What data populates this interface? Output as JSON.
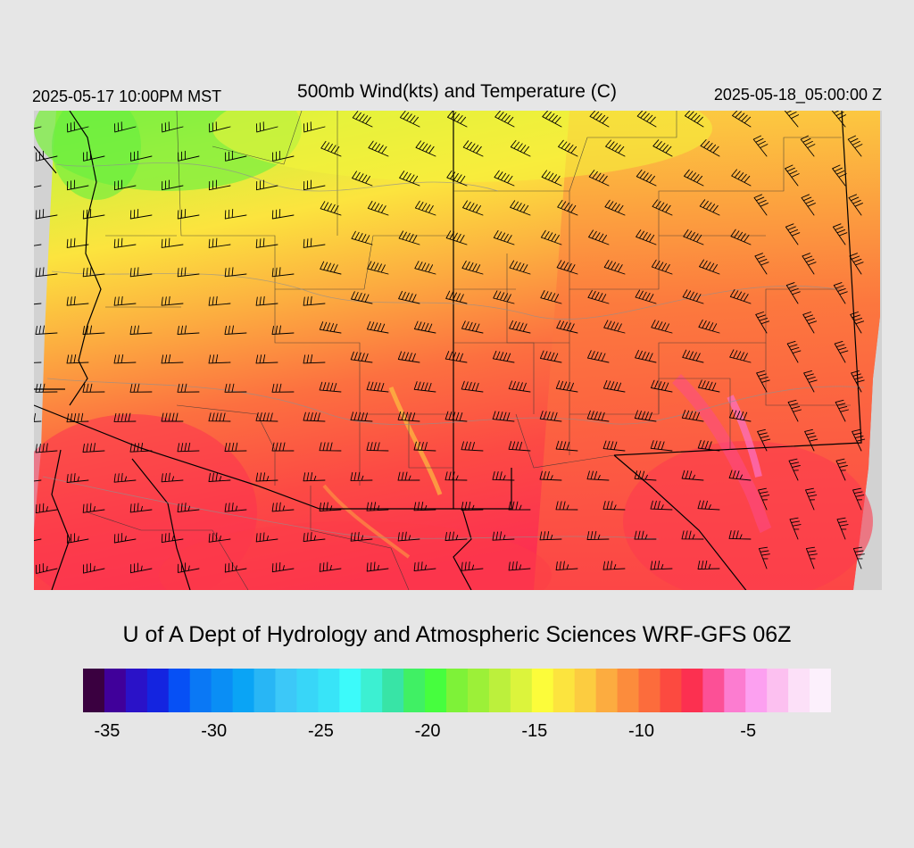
{
  "header": {
    "valid_local": "2025-05-17 10:00PM MST",
    "title": "500mb Wind(kts) and Temperature (C)",
    "valid_utc": "2025-05-18_05:00:00 Z"
  },
  "footer": {
    "credit": "U of A Dept of Hydrology and Atmospheric Sciences WRF-GFS 06Z"
  },
  "colorbar": {
    "colors": [
      "#3a0040",
      "#40009a",
      "#2a12c8",
      "#1424e0",
      "#0650f5",
      "#0a78f5",
      "#0a8ef5",
      "#0aa4f5",
      "#28b6f5",
      "#3cc8f8",
      "#38d6f8",
      "#38e4f8",
      "#3cfafa",
      "#3cf0d2",
      "#38e4a6",
      "#40f064",
      "#46fe3e",
      "#7ef238",
      "#9cf038",
      "#bcf03c",
      "#dcf43c",
      "#fcfc3a",
      "#fce43e",
      "#fccc40",
      "#fcac40",
      "#fc8c3c",
      "#fc6c3c",
      "#fc4a40",
      "#fc3050",
      "#fc5096",
      "#fc7cd0",
      "#fca0f0",
      "#fcc0f0",
      "#fce0f8",
      "#fcf0fc"
    ],
    "tick_labels": [
      "-35",
      "-30",
      "-25",
      "-20",
      "-15",
      "-10",
      "-5"
    ],
    "tick_values": [
      -35,
      -30,
      -25,
      -20,
      -15,
      -10,
      -5
    ],
    "range": [
      -36,
      -1
    ]
  }
}
